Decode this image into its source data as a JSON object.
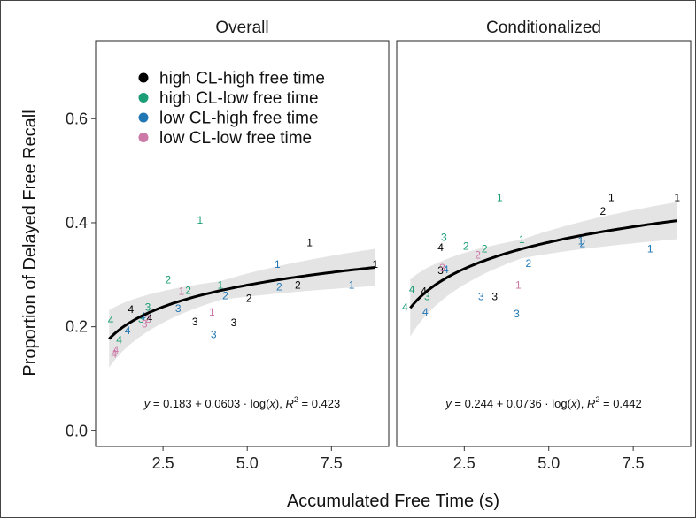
{
  "chart_data": {
    "type": "scatter",
    "xlabel": "Accumulated Free Time (s)",
    "ylabel": "Proportion of Delayed Free Recall",
    "xlim": [
      0.5,
      9.2
    ],
    "ylim": [
      -0.03,
      0.75
    ],
    "x_ticks": [
      "2.5",
      "5.0",
      "7.5"
    ],
    "y_ticks": [
      "0.0",
      "0.2",
      "0.4",
      "0.6"
    ],
    "legend": {
      "placement": "top-left of first panel",
      "entries": [
        {
          "key": "hh",
          "label": "high CL-high free time",
          "color": "#000000"
        },
        {
          "key": "hl",
          "label": "high CL-low free time",
          "color": "#1b9e77"
        },
        {
          "key": "lh",
          "label": "low CL-high free time",
          "color": "#2177b4"
        },
        {
          "key": "ll",
          "label": "low CL-low free time",
          "color": "#cc79a7"
        }
      ]
    },
    "panels": [
      {
        "title": "Overall",
        "fit": {
          "a": 0.183,
          "b": 0.0603
        },
        "equation": {
          "y": "y",
          "body": " = 0.183 + 0.0603 · log(",
          "x": "x",
          "mid": "),  ",
          "r": "R",
          "sup": "2",
          "tail": " = 0.423"
        },
        "points": [
          {
            "x": 6.85,
            "y": 0.362,
            "label": "1",
            "group": "hh"
          },
          {
            "x": 8.8,
            "y": 0.32,
            "label": "1",
            "group": "hh"
          },
          {
            "x": 6.5,
            "y": 0.28,
            "label": "2",
            "group": "hh"
          },
          {
            "x": 5.05,
            "y": 0.255,
            "label": "2",
            "group": "hh"
          },
          {
            "x": 3.45,
            "y": 0.21,
            "label": "3",
            "group": "hh"
          },
          {
            "x": 4.6,
            "y": 0.208,
            "label": "3",
            "group": "hh"
          },
          {
            "x": 1.55,
            "y": 0.233,
            "label": "4",
            "group": "hh"
          },
          {
            "x": 2.1,
            "y": 0.216,
            "label": "4",
            "group": "hh"
          },
          {
            "x": 3.6,
            "y": 0.405,
            "label": "1",
            "group": "hl"
          },
          {
            "x": 4.2,
            "y": 0.28,
            "label": "1",
            "group": "hl"
          },
          {
            "x": 2.65,
            "y": 0.29,
            "label": "2",
            "group": "hl"
          },
          {
            "x": 3.25,
            "y": 0.27,
            "label": "2",
            "group": "hl"
          },
          {
            "x": 2.05,
            "y": 0.238,
            "label": "3",
            "group": "hl"
          },
          {
            "x": 1.85,
            "y": 0.215,
            "label": "3",
            "group": "hl"
          },
          {
            "x": 0.95,
            "y": 0.212,
            "label": "4",
            "group": "hl"
          },
          {
            "x": 1.2,
            "y": 0.175,
            "label": "4",
            "group": "hl"
          },
          {
            "x": 5.9,
            "y": 0.32,
            "label": "1",
            "group": "lh"
          },
          {
            "x": 8.1,
            "y": 0.28,
            "label": "1",
            "group": "lh"
          },
          {
            "x": 5.95,
            "y": 0.277,
            "label": "2",
            "group": "lh"
          },
          {
            "x": 4.35,
            "y": 0.26,
            "label": "2",
            "group": "lh"
          },
          {
            "x": 2.95,
            "y": 0.235,
            "label": "3",
            "group": "lh"
          },
          {
            "x": 4.0,
            "y": 0.185,
            "label": "3",
            "group": "lh"
          },
          {
            "x": 1.9,
            "y": 0.22,
            "label": "4",
            "group": "lh"
          },
          {
            "x": 1.45,
            "y": 0.193,
            "label": "4",
            "group": "lh"
          },
          {
            "x": 3.05,
            "y": 0.268,
            "label": "1",
            "group": "ll"
          },
          {
            "x": 3.95,
            "y": 0.228,
            "label": "1",
            "group": "ll"
          },
          {
            "x": 2.05,
            "y": 0.215,
            "label": "2",
            "group": "ll"
          },
          {
            "x": 1.95,
            "y": 0.205,
            "label": "3",
            "group": "ll"
          },
          {
            "x": 1.05,
            "y": 0.148,
            "label": "4",
            "group": "ll"
          },
          {
            "x": 1.1,
            "y": 0.155,
            "label": "4",
            "group": "ll"
          }
        ]
      },
      {
        "title": "Conditionalized",
        "fit": {
          "a": 0.244,
          "b": 0.0736
        },
        "equation": {
          "y": "y",
          "body": " = 0.244 + 0.0736 · log(",
          "x": "x",
          "mid": "),  ",
          "r": "R",
          "sup": "2",
          "tail": " = 0.442"
        },
        "points": [
          {
            "x": 6.85,
            "y": 0.448,
            "label": "1",
            "group": "hh"
          },
          {
            "x": 8.8,
            "y": 0.448,
            "label": "1",
            "group": "hh"
          },
          {
            "x": 6.6,
            "y": 0.422,
            "label": "2",
            "group": "hh"
          },
          {
            "x": 1.8,
            "y": 0.352,
            "label": "4",
            "group": "hh"
          },
          {
            "x": 1.8,
            "y": 0.308,
            "label": "3",
            "group": "hh"
          },
          {
            "x": 3.4,
            "y": 0.258,
            "label": "3",
            "group": "hh"
          },
          {
            "x": 1.3,
            "y": 0.268,
            "label": "4",
            "group": "hh"
          },
          {
            "x": 3.55,
            "y": 0.448,
            "label": "1",
            "group": "hl"
          },
          {
            "x": 4.2,
            "y": 0.368,
            "label": "1",
            "group": "hl"
          },
          {
            "x": 2.55,
            "y": 0.355,
            "label": "2",
            "group": "hl"
          },
          {
            "x": 3.1,
            "y": 0.35,
            "label": "2",
            "group": "hl"
          },
          {
            "x": 1.9,
            "y": 0.372,
            "label": "3",
            "group": "hl"
          },
          {
            "x": 1.4,
            "y": 0.258,
            "label": "3",
            "group": "hl"
          },
          {
            "x": 0.95,
            "y": 0.272,
            "label": "4",
            "group": "hl"
          },
          {
            "x": 0.75,
            "y": 0.238,
            "label": "4",
            "group": "hl"
          },
          {
            "x": 5.95,
            "y": 0.365,
            "label": "1",
            "group": "lh"
          },
          {
            "x": 8.0,
            "y": 0.35,
            "label": "1",
            "group": "lh"
          },
          {
            "x": 6.0,
            "y": 0.36,
            "label": "2",
            "group": "lh"
          },
          {
            "x": 4.4,
            "y": 0.322,
            "label": "2",
            "group": "lh"
          },
          {
            "x": 3.0,
            "y": 0.258,
            "label": "3",
            "group": "lh"
          },
          {
            "x": 4.05,
            "y": 0.225,
            "label": "3",
            "group": "lh"
          },
          {
            "x": 1.35,
            "y": 0.228,
            "label": "4",
            "group": "lh"
          },
          {
            "x": 1.95,
            "y": 0.31,
            "label": "4",
            "group": "lh"
          },
          {
            "x": 4.1,
            "y": 0.28,
            "label": "1",
            "group": "ll"
          },
          {
            "x": 2.9,
            "y": 0.338,
            "label": "2",
            "group": "ll"
          },
          {
            "x": 1.85,
            "y": 0.313,
            "label": "3",
            "group": "ll"
          }
        ]
      }
    ]
  }
}
